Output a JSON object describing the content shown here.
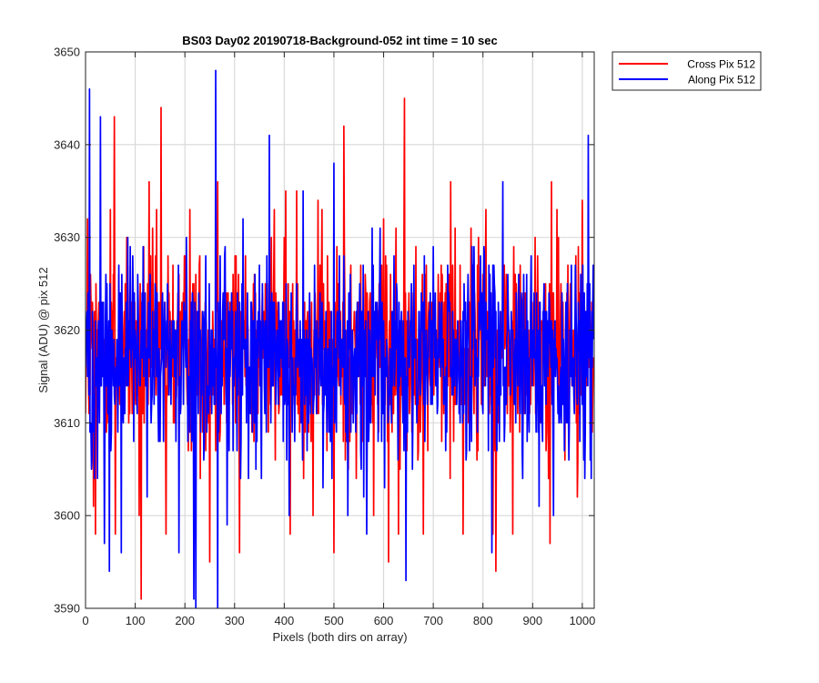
{
  "chart_data": {
    "type": "line",
    "title": "BS03 Day02 20190718-Background-052 int time = 10 sec",
    "xlabel": "Pixels (both dirs on array)",
    "ylabel": "Signal (ADU) @ pix 512",
    "xlim": [
      0,
      1024
    ],
    "ylim": [
      3590,
      3650
    ],
    "xticks": [
      0,
      100,
      200,
      300,
      400,
      500,
      600,
      700,
      800,
      900,
      1000
    ],
    "yticks": [
      3590,
      3600,
      3610,
      3620,
      3630,
      3640,
      3650
    ],
    "grid": true,
    "legend_position": "outside-top-right",
    "n_points": 1024,
    "series": [
      {
        "name": "Cross Pix 512",
        "color": "#ff0000",
        "mean": 3618,
        "spread": 7,
        "min": 3591,
        "max": 3645,
        "extremes": [
          [
            4,
            3632
          ],
          [
            16,
            3601
          ],
          [
            20,
            3598
          ],
          [
            50,
            3633
          ],
          [
            58,
            3643
          ],
          [
            60,
            3598
          ],
          [
            108,
            3600
          ],
          [
            112,
            3591
          ],
          [
            128,
            3636
          ],
          [
            152,
            3644
          ],
          [
            162,
            3598
          ],
          [
            188,
            3626
          ],
          [
            210,
            3633
          ],
          [
            250,
            3595
          ],
          [
            266,
            3636
          ],
          [
            310,
            3596
          ],
          [
            380,
            3633
          ],
          [
            412,
            3598
          ],
          [
            425,
            3635
          ],
          [
            458,
            3600
          ],
          [
            468,
            3634
          ],
          [
            500,
            3596
          ],
          [
            520,
            3642
          ],
          [
            545,
            3604
          ],
          [
            580,
            3600
          ],
          [
            600,
            3632
          ],
          [
            610,
            3595
          ],
          [
            625,
            3631
          ],
          [
            630,
            3598
          ],
          [
            642,
            3645
          ],
          [
            680,
            3598
          ],
          [
            735,
            3636
          ],
          [
            760,
            3598
          ],
          [
            806,
            3633
          ],
          [
            820,
            3598
          ],
          [
            826,
            3594
          ],
          [
            860,
            3598
          ],
          [
            935,
            3597
          ],
          [
            938,
            3636
          ],
          [
            990,
            3602
          ],
          [
            1000,
            3634
          ],
          [
            1020,
            3609
          ]
        ]
      },
      {
        "name": "Along Pix 512",
        "color": "#0000ff",
        "mean": 3617,
        "spread": 7,
        "min": 3590,
        "max": 3648,
        "extremes": [
          [
            2,
            3620
          ],
          [
            8,
            3646
          ],
          [
            12,
            3605
          ],
          [
            30,
            3643
          ],
          [
            38,
            3597
          ],
          [
            48,
            3594
          ],
          [
            72,
            3596
          ],
          [
            116,
            3629
          ],
          [
            124,
            3602
          ],
          [
            188,
            3596
          ],
          [
            218,
            3591
          ],
          [
            222,
            3590
          ],
          [
            262,
            3648
          ],
          [
            266,
            3590
          ],
          [
            285,
            3599
          ],
          [
            370,
            3641
          ],
          [
            398,
            3608
          ],
          [
            410,
            3600
          ],
          [
            438,
            3635
          ],
          [
            500,
            3638
          ],
          [
            528,
            3600
          ],
          [
            566,
            3598
          ],
          [
            602,
            3603
          ],
          [
            645,
            3593
          ],
          [
            658,
            3605
          ],
          [
            700,
            3629
          ],
          [
            725,
            3607
          ],
          [
            770,
            3626
          ],
          [
            818,
            3596
          ],
          [
            840,
            3636
          ],
          [
            880,
            3604
          ],
          [
            942,
            3600
          ],
          [
            1005,
            3604
          ],
          [
            1012,
            3641
          ],
          [
            1023,
            3619
          ]
        ]
      }
    ]
  }
}
